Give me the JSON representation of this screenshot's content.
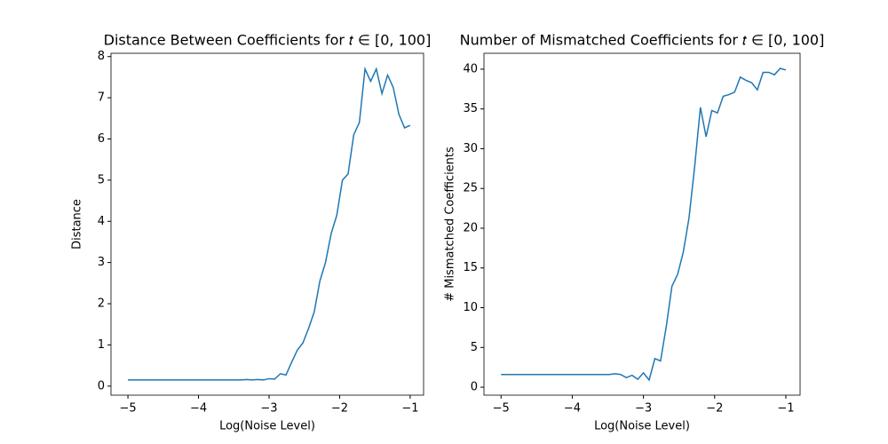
{
  "chart_data": [
    {
      "type": "line",
      "title": "Distance Between Coefficients for 𝑡 ∈ [0, 100]",
      "x_label": "Log(Noise Level)",
      "y_label": "Distance",
      "x": [
        -5,
        -4.92,
        -4.84,
        -4.76,
        -4.68,
        -4.6,
        -4.52,
        -4.44,
        -4.36,
        -4.28,
        -4.2,
        -4.12,
        -4.04,
        -3.96,
        -3.88,
        -3.8,
        -3.72,
        -3.64,
        -3.56,
        -3.48,
        -3.4,
        -3.32,
        -3.24,
        -3.16,
        -3.08,
        -3,
        -2.92,
        -2.84,
        -2.76,
        -2.68,
        -2.6,
        -2.52,
        -2.44,
        -2.36,
        -2.28,
        -2.2,
        -2.12,
        -2.04,
        -1.96,
        -1.88,
        -1.8,
        -1.72,
        -1.64,
        -1.56,
        -1.48,
        -1.4,
        -1.32,
        -1.24,
        -1.16,
        -1.08,
        -1
      ],
      "series": [
        {
          "color": "#1f77b4",
          "values": [
            0.15,
            0.15,
            0.15,
            0.15,
            0.15,
            0.15,
            0.15,
            0.15,
            0.15,
            0.15,
            0.15,
            0.15,
            0.15,
            0.15,
            0.15,
            0.15,
            0.15,
            0.15,
            0.15,
            0.15,
            0.15,
            0.16,
            0.15,
            0.16,
            0.15,
            0.18,
            0.17,
            0.3,
            0.27,
            0.58,
            0.87,
            1.05,
            1.4,
            1.8,
            2.55,
            3.0,
            3.7,
            4.15,
            5.0,
            5.15,
            6.1,
            6.4,
            7.7,
            7.4,
            7.7,
            7.1,
            7.55,
            7.25,
            6.6,
            6.27,
            6.33
          ]
        }
      ],
      "xlim": [
        -5.24,
        -0.81
      ],
      "ylim": [
        -0.22,
        8.08
      ],
      "xticks": [
        {
          "value": -5,
          "label": "−5"
        },
        {
          "value": -4,
          "label": "−4"
        },
        {
          "value": -3,
          "label": "−3"
        },
        {
          "value": -2,
          "label": "−2"
        },
        {
          "value": -1,
          "label": "−1"
        }
      ],
      "yticks": [
        0,
        1,
        2,
        3,
        4,
        5,
        6,
        7,
        8
      ]
    },
    {
      "type": "line",
      "title": "Number of Mismatched Coefficients for 𝑡 ∈ [0, 100]",
      "x_label": "Log(Noise Level)",
      "y_label": "# Mismatched Coefficients",
      "x": [
        -5,
        -4.92,
        -4.84,
        -4.76,
        -4.68,
        -4.6,
        -4.52,
        -4.44,
        -4.36,
        -4.28,
        -4.2,
        -4.12,
        -4.04,
        -3.96,
        -3.88,
        -3.8,
        -3.72,
        -3.64,
        -3.56,
        -3.48,
        -3.4,
        -3.32,
        -3.24,
        -3.16,
        -3.08,
        -3,
        -2.92,
        -2.84,
        -2.76,
        -2.68,
        -2.6,
        -2.52,
        -2.44,
        -2.36,
        -2.28,
        -2.2,
        -2.12,
        -2.04,
        -1.96,
        -1.88,
        -1.8,
        -1.72,
        -1.64,
        -1.56,
        -1.48,
        -1.4,
        -1.32,
        -1.24,
        -1.16,
        -1.08,
        -1
      ],
      "series": [
        {
          "color": "#1f77b4",
          "values": [
            1.6,
            1.6,
            1.6,
            1.6,
            1.6,
            1.6,
            1.6,
            1.6,
            1.6,
            1.6,
            1.6,
            1.6,
            1.6,
            1.6,
            1.6,
            1.6,
            1.6,
            1.6,
            1.6,
            1.6,
            1.7,
            1.6,
            1.2,
            1.5,
            1.0,
            1.8,
            0.9,
            3.6,
            3.3,
            7.6,
            12.7,
            14.2,
            17.0,
            21.3,
            27.8,
            35.2,
            31.5,
            34.8,
            34.5,
            36.6,
            36.8,
            37.1,
            39.0,
            38.6,
            38.3,
            37.4,
            39.6,
            39.6,
            39.3,
            40.1,
            39.9
          ]
        }
      ],
      "xlim": [
        -5.24,
        -0.8
      ],
      "ylim": [
        -1.0,
        42.0
      ],
      "xticks": [
        {
          "value": -5,
          "label": "−5"
        },
        {
          "value": -4,
          "label": "−4"
        },
        {
          "value": -3,
          "label": "−3"
        },
        {
          "value": -2,
          "label": "−2"
        },
        {
          "value": -1,
          "label": "−1"
        }
      ],
      "yticks": [
        0,
        5,
        10,
        15,
        20,
        25,
        30,
        35,
        40
      ]
    }
  ]
}
